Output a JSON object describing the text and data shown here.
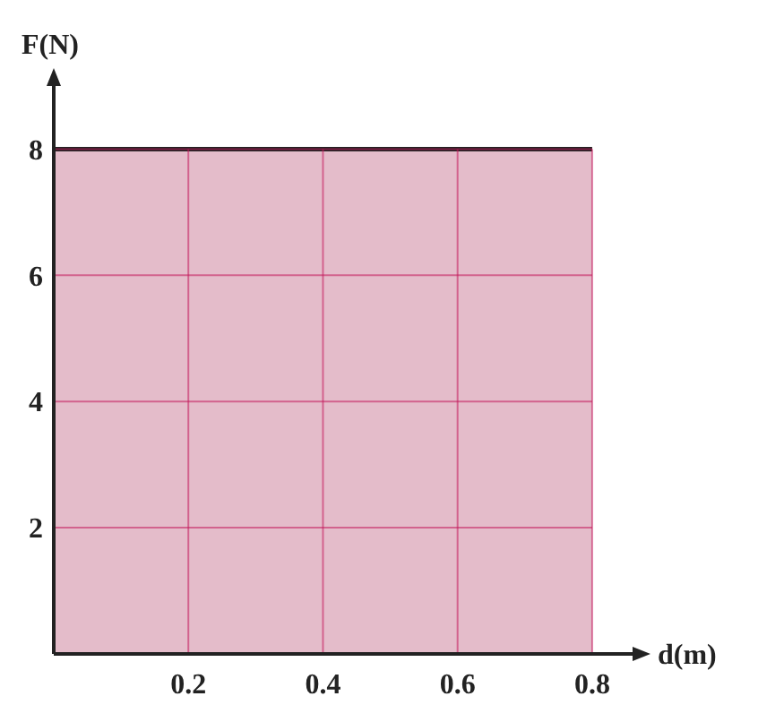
{
  "chart_data": {
    "type": "area",
    "xlabel": "d(m)",
    "ylabel": "F(N)",
    "x": [
      0,
      0.8
    ],
    "series": [
      {
        "color": "#d9a0b4",
        "values": [
          8,
          8
        ]
      }
    ],
    "xlim": [
      0,
      0.86
    ],
    "xticks": [
      0.2,
      0.4,
      0.6,
      0.8
    ],
    "ylim": [
      0,
      9
    ],
    "yticks": [
      2,
      4,
      6,
      8
    ],
    "grid": true
  }
}
